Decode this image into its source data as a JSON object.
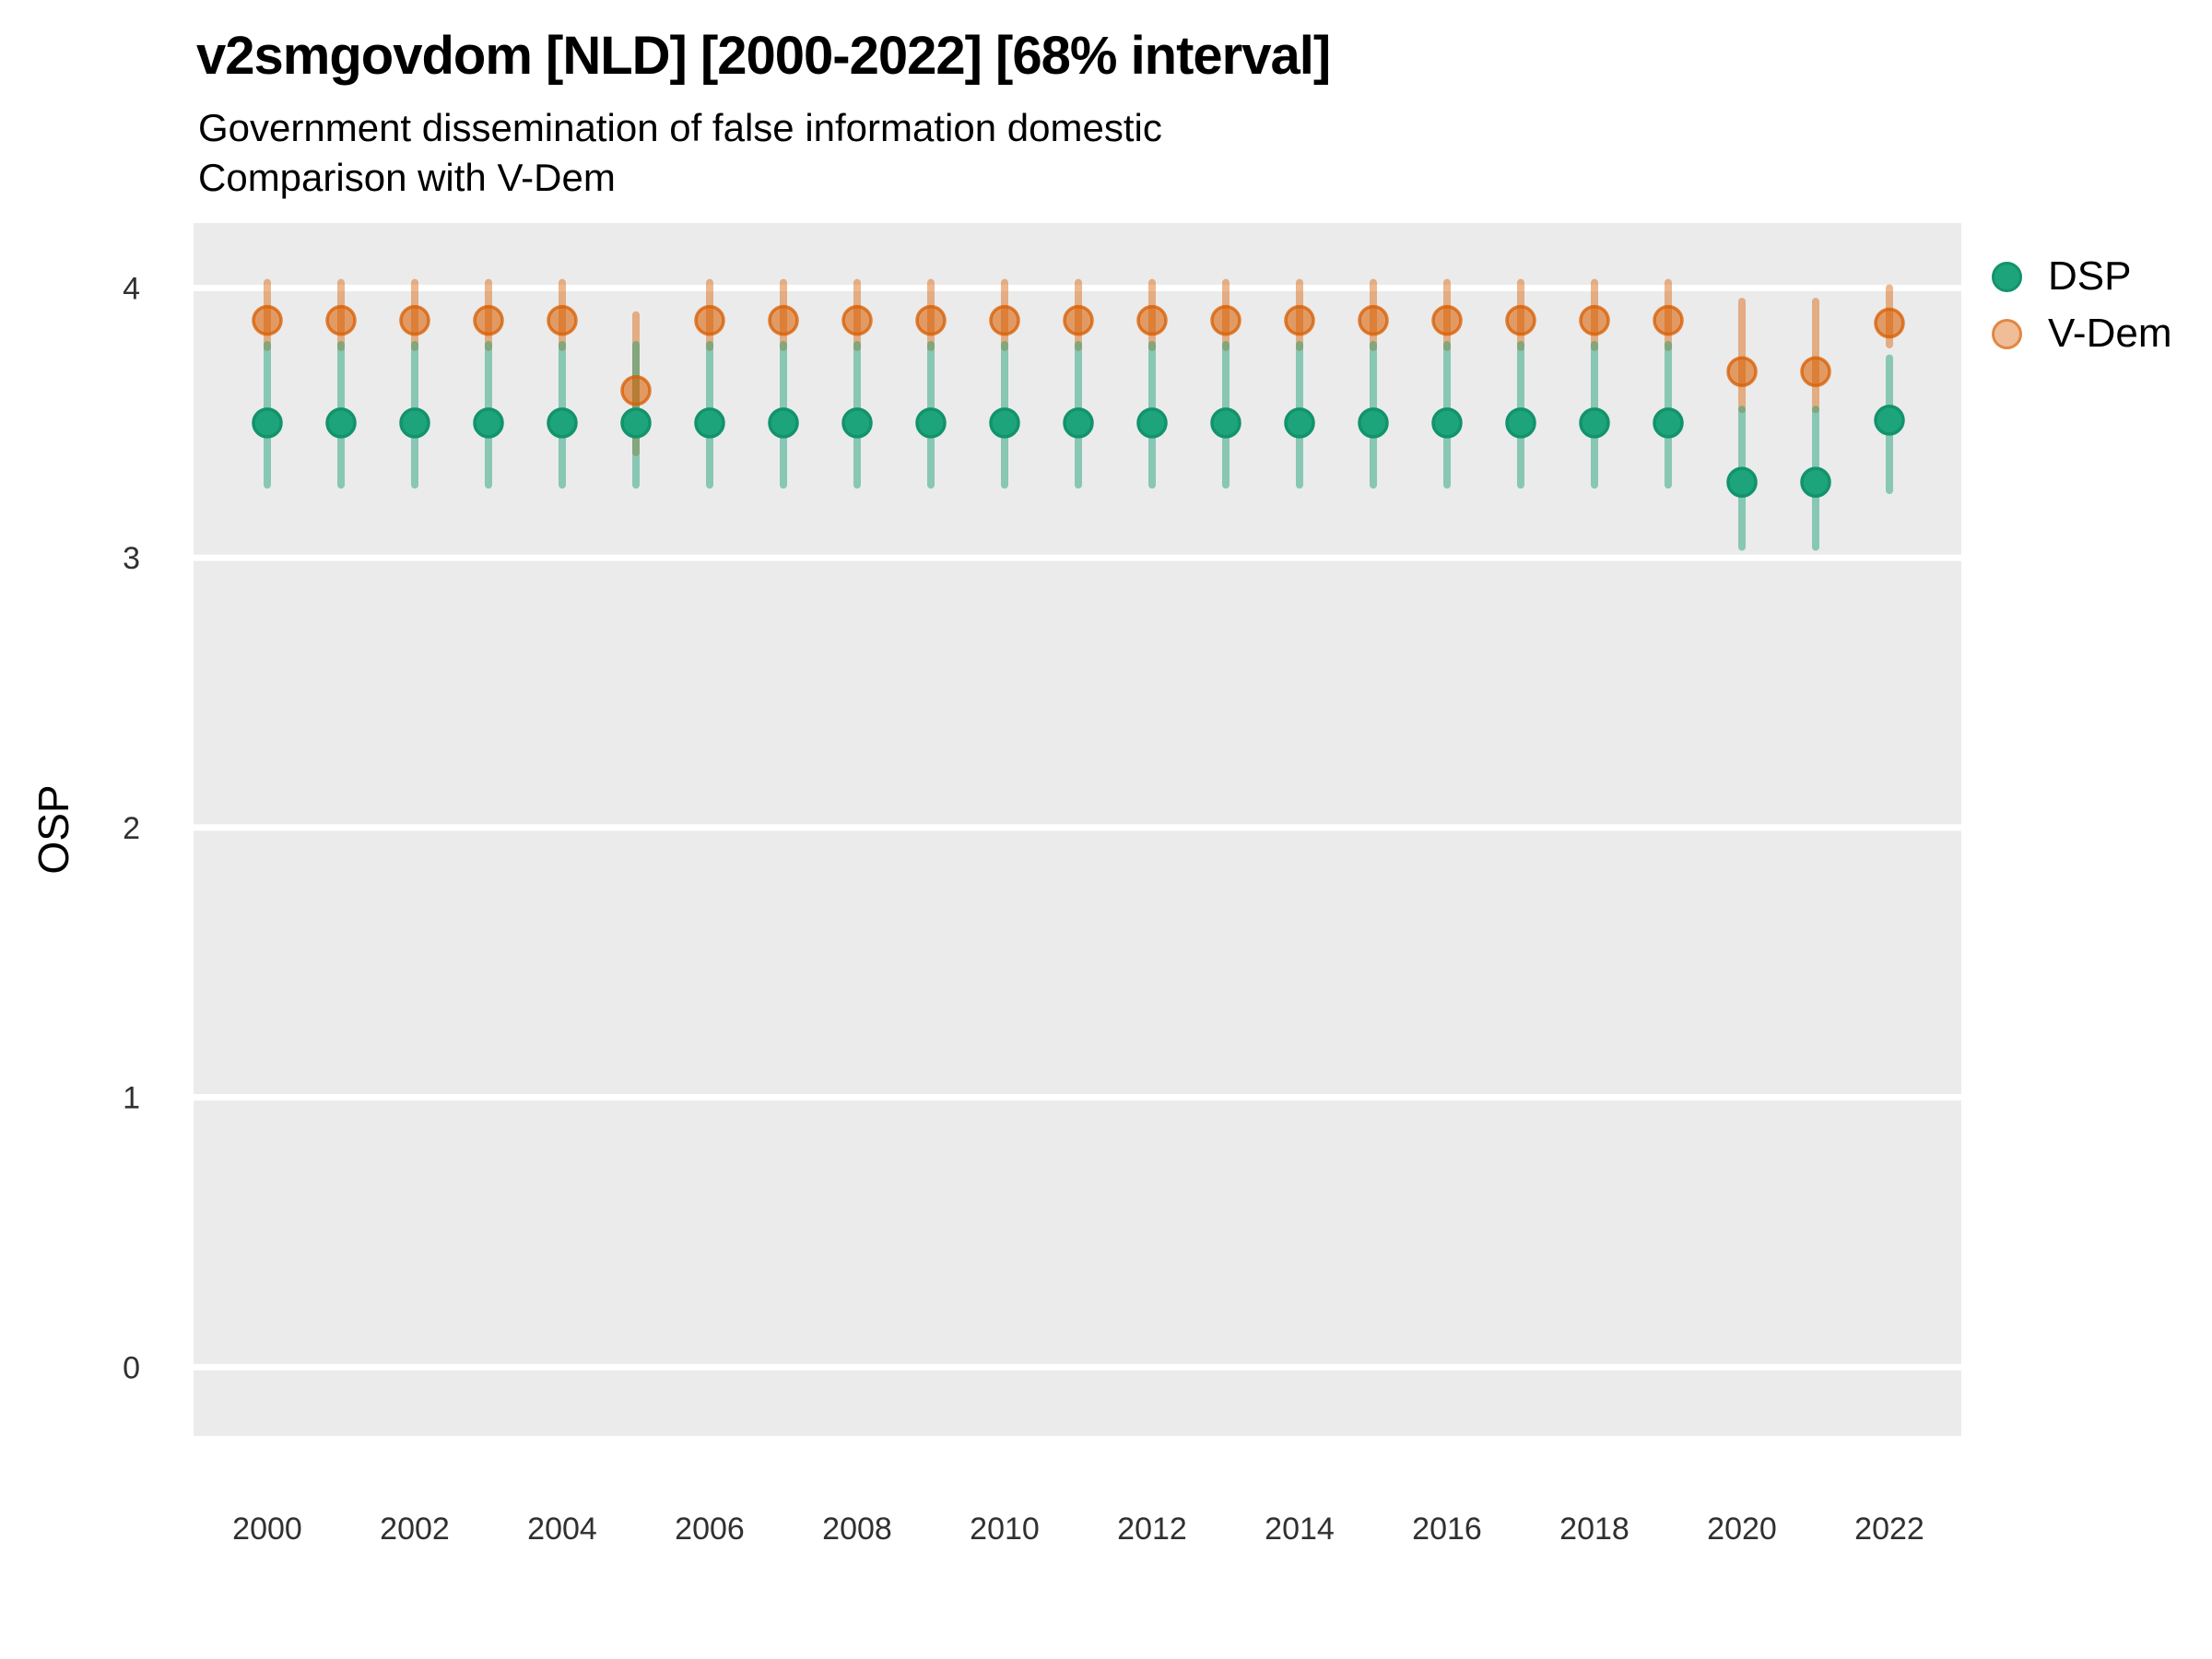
{
  "chart_data": {
    "type": "scatter",
    "title": "v2smgovdom [NLD] [2000-2022] [68% interval]",
    "subtitle": [
      "Government dissemination of false information domestic",
      "Comparison with V-Dem"
    ],
    "xlabel": "",
    "ylabel": "OSP",
    "interval_label": "68% interval",
    "x": [
      2000,
      2001,
      2002,
      2003,
      2004,
      2005,
      2006,
      2007,
      2008,
      2009,
      2010,
      2011,
      2012,
      2013,
      2014,
      2015,
      2016,
      2017,
      2018,
      2019,
      2020,
      2021,
      2022
    ],
    "series": [
      {
        "name": "DSP",
        "color": "#1B9E77",
        "est": [
          3.5,
          3.5,
          3.5,
          3.5,
          3.5,
          3.5,
          3.5,
          3.5,
          3.5,
          3.5,
          3.5,
          3.5,
          3.5,
          3.5,
          3.5,
          3.5,
          3.5,
          3.5,
          3.5,
          3.5,
          3.28,
          3.28,
          3.51
        ],
        "lo": [
          3.27,
          3.27,
          3.27,
          3.27,
          3.27,
          3.27,
          3.27,
          3.27,
          3.27,
          3.27,
          3.27,
          3.27,
          3.27,
          3.27,
          3.27,
          3.27,
          3.27,
          3.27,
          3.27,
          3.27,
          3.04,
          3.04,
          3.25
        ],
        "hi": [
          3.79,
          3.79,
          3.79,
          3.79,
          3.79,
          3.79,
          3.79,
          3.79,
          3.79,
          3.79,
          3.79,
          3.79,
          3.79,
          3.79,
          3.79,
          3.79,
          3.79,
          3.79,
          3.79,
          3.79,
          3.55,
          3.55,
          3.74
        ]
      },
      {
        "name": "V-Dem",
        "color": "#D95F02",
        "est": [
          3.88,
          3.88,
          3.88,
          3.88,
          3.88,
          3.62,
          3.88,
          3.88,
          3.88,
          3.88,
          3.88,
          3.88,
          3.88,
          3.88,
          3.88,
          3.88,
          3.88,
          3.88,
          3.88,
          3.88,
          3.69,
          3.69,
          3.87
        ],
        "lo": [
          3.78,
          3.78,
          3.78,
          3.78,
          3.78,
          3.39,
          3.78,
          3.78,
          3.78,
          3.78,
          3.78,
          3.78,
          3.78,
          3.78,
          3.78,
          3.78,
          3.78,
          3.78,
          3.78,
          3.78,
          3.55,
          3.55,
          3.79
        ],
        "hi": [
          4.02,
          4.02,
          4.02,
          4.02,
          4.02,
          3.9,
          4.02,
          4.02,
          4.02,
          4.02,
          4.02,
          4.02,
          4.02,
          4.02,
          4.02,
          4.02,
          4.02,
          4.02,
          4.02,
          4.02,
          3.95,
          3.95,
          4.0
        ]
      }
    ],
    "ylim": [
      -0.26,
      4.24
    ],
    "yticks": [
      0,
      1,
      2,
      3,
      4
    ],
    "xticks": [
      2000,
      2002,
      2004,
      2006,
      2008,
      2010,
      2012,
      2014,
      2016,
      2018,
      2020,
      2022
    ],
    "legend_position": "right-top",
    "grid": "horizontal-major-only",
    "panel_background": "#EBEBEB",
    "gridline_color": "#FFFFFF",
    "tick_label_color": "#303030"
  }
}
